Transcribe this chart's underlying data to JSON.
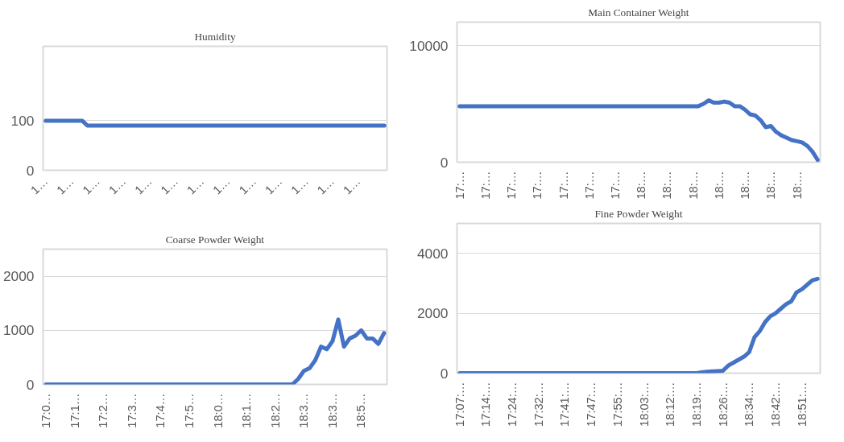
{
  "chart_data": [
    {
      "type": "line",
      "title": "Humidity",
      "color": "#4472c4",
      "ylim": [
        0,
        250
      ],
      "yticks": [
        0,
        100
      ],
      "grid": "y",
      "categories": [
        "1…",
        null,
        null,
        null,
        null,
        "1…",
        null,
        null,
        null,
        null,
        "1…",
        null,
        null,
        null,
        null,
        "1…",
        null,
        null,
        null,
        null,
        "1…",
        null,
        null,
        null,
        null,
        "1…",
        null,
        null,
        null,
        null,
        "1…",
        null,
        null,
        null,
        null,
        "1…",
        null,
        null,
        null,
        null,
        "1…",
        null,
        null,
        null,
        null,
        "1…",
        null,
        null,
        null,
        null,
        "1…",
        null,
        null,
        null,
        null,
        "1…",
        null,
        null,
        null,
        null,
        "1…",
        null,
        null,
        null,
        null,
        null
      ],
      "values": [
        100,
        100,
        100,
        100,
        100,
        100,
        100,
        100,
        90,
        90,
        90,
        90,
        90,
        90,
        90,
        90,
        90,
        90,
        90,
        90,
        90,
        90,
        90,
        90,
        90,
        90,
        90,
        90,
        90,
        90,
        90,
        90,
        90,
        90,
        90,
        90,
        90,
        90,
        90,
        90,
        90,
        90,
        90,
        90,
        90,
        90,
        90,
        90,
        90,
        90,
        90,
        90,
        90,
        90,
        90,
        90,
        90,
        90,
        90,
        90,
        90,
        90,
        90,
        90,
        90,
        90
      ]
    },
    {
      "type": "line",
      "title": "Main Container Weight",
      "color": "#4472c4",
      "ylim": [
        0,
        12000
      ],
      "yticks": [
        0,
        10000
      ],
      "grid": "y",
      "categories": [
        "17:…",
        null,
        null,
        null,
        null,
        "17:…",
        null,
        null,
        null,
        null,
        "17:…",
        null,
        null,
        null,
        null,
        "17:…",
        null,
        null,
        null,
        null,
        "17:…",
        null,
        null,
        null,
        null,
        "17:…",
        null,
        null,
        null,
        null,
        "17:…",
        null,
        null,
        null,
        null,
        "18:…",
        null,
        null,
        null,
        null,
        "18:…",
        null,
        null,
        null,
        null,
        "18:…",
        null,
        null,
        null,
        null,
        "18:…",
        null,
        null,
        null,
        null,
        "18:…",
        null,
        null,
        null,
        null,
        "18:…",
        null,
        null,
        null,
        null,
        "18:…",
        null,
        null,
        null,
        null
      ],
      "values": [
        4800,
        4800,
        4800,
        4800,
        4800,
        4800,
        4800,
        4800,
        4800,
        4800,
        4800,
        4800,
        4800,
        4800,
        4800,
        4800,
        4800,
        4800,
        4800,
        4800,
        4800,
        4800,
        4800,
        4800,
        4800,
        4800,
        4800,
        4800,
        4800,
        4800,
        4800,
        4800,
        4800,
        4800,
        4800,
        4800,
        4800,
        4800,
        4800,
        4800,
        4800,
        4800,
        4800,
        4800,
        4800,
        4800,
        4800,
        5000,
        5300,
        5100,
        5100,
        5200,
        5100,
        4800,
        4800,
        4500,
        4100,
        4000,
        3600,
        3000,
        3100,
        2600,
        2300,
        2100,
        1900,
        1800,
        1700,
        1400,
        900,
        200
      ]
    },
    {
      "type": "line",
      "title": "Coarse Powder Weight",
      "color": "#4472c4",
      "ylim": [
        0,
        2500
      ],
      "yticks": [
        0,
        1000,
        2000
      ],
      "grid": "y",
      "categories": [
        "17:0…",
        null,
        null,
        null,
        null,
        "17:1…",
        null,
        null,
        null,
        null,
        "17:2…",
        null,
        null,
        null,
        null,
        "17:3…",
        null,
        null,
        null,
        null,
        "17:4…",
        null,
        null,
        null,
        null,
        "17:5…",
        null,
        null,
        null,
        null,
        "18:0…",
        null,
        null,
        null,
        null,
        "18:1…",
        null,
        null,
        null,
        null,
        "18:2…",
        null,
        null,
        null,
        null,
        "18:3…",
        null,
        null,
        null,
        null,
        "18:3…",
        null,
        null,
        null,
        null,
        "18:5…",
        null,
        null,
        null,
        null
      ],
      "values": [
        0,
        0,
        0,
        0,
        0,
        0,
        0,
        0,
        0,
        0,
        0,
        0,
        0,
        0,
        0,
        0,
        0,
        0,
        0,
        0,
        0,
        0,
        0,
        0,
        0,
        0,
        0,
        0,
        0,
        0,
        0,
        0,
        0,
        0,
        0,
        0,
        0,
        0,
        0,
        0,
        0,
        0,
        0,
        0,
        100,
        250,
        300,
        450,
        700,
        650,
        800,
        1200,
        700,
        850,
        900,
        1000,
        850,
        850,
        750,
        950
      ]
    },
    {
      "type": "line",
      "title": "Fine Powder Weight",
      "color": "#4472c4",
      "ylim": [
        0,
        5000
      ],
      "yticks": [
        0,
        2000,
        4000
      ],
      "grid": "y",
      "categories": [
        "17:07:…",
        null,
        null,
        null,
        null,
        "17:14:…",
        null,
        null,
        null,
        null,
        "17:24:…",
        null,
        null,
        null,
        null,
        "17:32:…",
        null,
        null,
        null,
        null,
        "17:41:…",
        null,
        null,
        null,
        null,
        "17:47:…",
        null,
        null,
        null,
        null,
        "17:55:…",
        null,
        null,
        null,
        null,
        "18:03:…",
        null,
        null,
        null,
        null,
        "18:12:…",
        null,
        null,
        null,
        null,
        "18:19:…",
        null,
        null,
        null,
        null,
        "18:26:…",
        null,
        null,
        null,
        null,
        "18:34:…",
        null,
        null,
        null,
        null,
        "18:42:…",
        null,
        null,
        null,
        null,
        "18:51:…",
        null,
        null,
        null
      ],
      "values": [
        0,
        0,
        0,
        0,
        0,
        0,
        0,
        0,
        0,
        0,
        0,
        0,
        0,
        0,
        0,
        0,
        0,
        0,
        0,
        0,
        0,
        0,
        0,
        0,
        0,
        0,
        0,
        0,
        0,
        0,
        0,
        0,
        0,
        0,
        0,
        0,
        0,
        0,
        0,
        0,
        0,
        0,
        0,
        0,
        0,
        0,
        30,
        50,
        60,
        70,
        80,
        250,
        350,
        450,
        550,
        700,
        1200,
        1400,
        1700,
        1900,
        2000,
        2150,
        2300,
        2400,
        2700,
        2800,
        2950,
        3100,
        3150
      ]
    }
  ]
}
